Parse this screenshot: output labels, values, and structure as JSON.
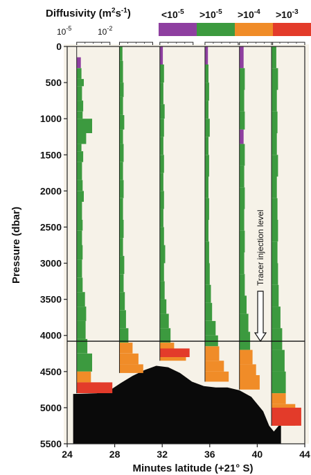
{
  "chart_data": {
    "type": "step-profiles",
    "title": "",
    "xlabel": "Minutes latitude (+21° S)",
    "ylabel": "Pressure (dbar)",
    "xlim": [
      24,
      44
    ],
    "ylim": [
      0,
      5500
    ],
    "y_inverted": true,
    "x_ticks": [
      "24",
      "28",
      "32",
      "36",
      "40",
      "44"
    ],
    "y_ticks": [
      "0",
      "500",
      "1000",
      "1500",
      "2000",
      "2500",
      "3000",
      "3500",
      "4000",
      "4500",
      "5000",
      "5500"
    ],
    "legend": {
      "title": "Diffusivity (m²s⁻¹)",
      "title_main": "Diffusivity (m",
      "title_sup1": "2",
      "title_mid": "s",
      "title_sup2": "-1",
      "title_end": ")",
      "placement": "top",
      "entries": [
        {
          "base": "<10",
          "exp": "-5",
          "color": "#8e3fa0"
        },
        {
          "base": ">10",
          "exp": "-5",
          "color": "#3c9a3f"
        },
        {
          "base": ">10",
          "exp": "-4",
          "color": "#f08c28"
        },
        {
          "base": ">10",
          "exp": "-3",
          "color": "#e33b2a"
        }
      ]
    },
    "scale_labels": [
      {
        "base": "10",
        "exp": "-5"
      },
      {
        "base": "10",
        "exp": "-2"
      }
    ],
    "annotation": {
      "text": "Tracer injection level",
      "pressure": 4080
    },
    "bottom_topography": [
      [
        24.5,
        5500
      ],
      [
        24.5,
        4810
      ],
      [
        26.5,
        4800
      ],
      [
        27.5,
        4770
      ],
      [
        28.5,
        4660
      ],
      [
        29.5,
        4560
      ],
      [
        30.5,
        4480
      ],
      [
        31.5,
        4420
      ],
      [
        32.5,
        4440
      ],
      [
        33.5,
        4520
      ],
      [
        34.5,
        4640
      ],
      [
        35.5,
        4700
      ],
      [
        36.5,
        4720
      ],
      [
        37.5,
        4720
      ],
      [
        38.5,
        4760
      ],
      [
        39.5,
        4850
      ],
      [
        40.5,
        5050
      ],
      [
        41.0,
        5250
      ],
      [
        41.4,
        5330
      ],
      [
        41.8,
        5250
      ],
      [
        42.0,
        5250
      ],
      [
        42.0,
        5500
      ]
    ],
    "profiles": [
      {
        "base_lat": 24.8,
        "segments": [
          [
            0,
            100,
            0.15,
            "#f6f2e8"
          ],
          [
            150,
            300,
            0.35,
            "#8e3fa0"
          ],
          [
            300,
            450,
            0.4,
            "#3c9a3f"
          ],
          [
            450,
            550,
            0.6,
            "#3c9a3f"
          ],
          [
            550,
            750,
            0.45,
            "#3c9a3f"
          ],
          [
            750,
            900,
            0.55,
            "#3c9a3f"
          ],
          [
            900,
            1000,
            0.5,
            "#3c9a3f"
          ],
          [
            1000,
            1200,
            1.3,
            "#3c9a3f"
          ],
          [
            1200,
            1350,
            0.8,
            "#3c9a3f"
          ],
          [
            1350,
            1450,
            0.4,
            "#3c9a3f"
          ],
          [
            1450,
            1600,
            0.55,
            "#3c9a3f"
          ],
          [
            1600,
            1850,
            0.45,
            "#3c9a3f"
          ],
          [
            1850,
            2000,
            0.5,
            "#3c9a3f"
          ],
          [
            2000,
            2150,
            0.6,
            "#3c9a3f"
          ],
          [
            2150,
            2400,
            0.45,
            "#3c9a3f"
          ],
          [
            2400,
            2550,
            0.5,
            "#3c9a3f"
          ],
          [
            2550,
            2750,
            0.45,
            "#3c9a3f"
          ],
          [
            2750,
            2950,
            0.5,
            "#3c9a3f"
          ],
          [
            2950,
            3200,
            0.45,
            "#3c9a3f"
          ],
          [
            3200,
            3400,
            0.5,
            "#3c9a3f"
          ],
          [
            3400,
            3600,
            0.7,
            "#3c9a3f"
          ],
          [
            3600,
            3800,
            0.8,
            "#3c9a3f"
          ],
          [
            3800,
            4050,
            0.75,
            "#3c9a3f"
          ],
          [
            4050,
            4250,
            0.9,
            "#3c9a3f"
          ],
          [
            4250,
            4500,
            1.3,
            "#3c9a3f"
          ],
          [
            4500,
            4650,
            1.2,
            "#f08c28"
          ],
          [
            4650,
            4800,
            2.0,
            "#f08c28"
          ],
          [
            4650,
            4800,
            3.0,
            "#e33b2a"
          ]
        ]
      },
      {
        "base_lat": 28.4,
        "segments": [
          [
            0,
            200,
            0.25,
            "#3c9a3f"
          ],
          [
            200,
            500,
            0.3,
            "#3c9a3f"
          ],
          [
            500,
            700,
            0.35,
            "#3c9a3f"
          ],
          [
            700,
            950,
            0.3,
            "#3c9a3f"
          ],
          [
            950,
            1150,
            0.4,
            "#3c9a3f"
          ],
          [
            1150,
            1350,
            0.3,
            "#3c9a3f"
          ],
          [
            1350,
            1600,
            0.35,
            "#3c9a3f"
          ],
          [
            1600,
            1850,
            0.3,
            "#3c9a3f"
          ],
          [
            1850,
            2100,
            0.35,
            "#3c9a3f"
          ],
          [
            2100,
            2400,
            0.3,
            "#3c9a3f"
          ],
          [
            2400,
            2650,
            0.35,
            "#3c9a3f"
          ],
          [
            2650,
            2900,
            0.3,
            "#3c9a3f"
          ],
          [
            2900,
            3150,
            0.4,
            "#3c9a3f"
          ],
          [
            3150,
            3400,
            0.35,
            "#3c9a3f"
          ],
          [
            3400,
            3650,
            0.45,
            "#3c9a3f"
          ],
          [
            3650,
            3900,
            0.55,
            "#3c9a3f"
          ],
          [
            3900,
            4100,
            0.75,
            "#3c9a3f"
          ],
          [
            4100,
            4250,
            1.1,
            "#f08c28"
          ],
          [
            4250,
            4400,
            1.6,
            "#f08c28"
          ],
          [
            4400,
            4520,
            2.0,
            "#f08c28"
          ]
        ]
      },
      {
        "base_lat": 31.8,
        "segments": [
          [
            0,
            250,
            0.25,
            "#8e3fa0"
          ],
          [
            250,
            500,
            0.35,
            "#3c9a3f"
          ],
          [
            500,
            800,
            0.3,
            "#3c9a3f"
          ],
          [
            800,
            1000,
            0.4,
            "#3c9a3f"
          ],
          [
            1000,
            1250,
            0.35,
            "#3c9a3f"
          ],
          [
            1250,
            1500,
            0.3,
            "#3c9a3f"
          ],
          [
            1500,
            1750,
            0.35,
            "#3c9a3f"
          ],
          [
            1750,
            2000,
            0.3,
            "#3c9a3f"
          ],
          [
            2000,
            2250,
            0.35,
            "#3c9a3f"
          ],
          [
            2250,
            2500,
            0.3,
            "#3c9a3f"
          ],
          [
            2500,
            2750,
            0.35,
            "#3c9a3f"
          ],
          [
            2750,
            3000,
            0.45,
            "#3c9a3f"
          ],
          [
            3000,
            3250,
            0.35,
            "#3c9a3f"
          ],
          [
            3250,
            3500,
            0.4,
            "#3c9a3f"
          ],
          [
            3500,
            3700,
            0.55,
            "#3c9a3f"
          ],
          [
            3700,
            3900,
            0.75,
            "#3c9a3f"
          ],
          [
            3900,
            4100,
            0.9,
            "#3c9a3f"
          ],
          [
            4100,
            4250,
            1.2,
            "#f08c28"
          ],
          [
            4250,
            4350,
            2.2,
            "#f08c28"
          ],
          [
            4180,
            4300,
            2.5,
            "#e33b2a"
          ]
        ]
      },
      {
        "base_lat": 35.6,
        "segments": [
          [
            0,
            250,
            0.25,
            "#8e3fa0"
          ],
          [
            250,
            500,
            0.3,
            "#3c9a3f"
          ],
          [
            500,
            750,
            0.35,
            "#3c9a3f"
          ],
          [
            750,
            1000,
            0.3,
            "#3c9a3f"
          ],
          [
            1000,
            1250,
            0.4,
            "#3c9a3f"
          ],
          [
            1250,
            1500,
            0.3,
            "#3c9a3f"
          ],
          [
            1500,
            1800,
            0.35,
            "#3c9a3f"
          ],
          [
            1800,
            2100,
            0.3,
            "#3c9a3f"
          ],
          [
            2100,
            2400,
            0.35,
            "#3c9a3f"
          ],
          [
            2400,
            2700,
            0.3,
            "#3c9a3f"
          ],
          [
            2700,
            3000,
            0.35,
            "#3c9a3f"
          ],
          [
            3000,
            3300,
            0.4,
            "#3c9a3f"
          ],
          [
            3300,
            3550,
            0.5,
            "#3c9a3f"
          ],
          [
            3550,
            3800,
            0.6,
            "#3c9a3f"
          ],
          [
            3800,
            4000,
            0.9,
            "#3c9a3f"
          ],
          [
            4000,
            4150,
            1.1,
            "#3c9a3f"
          ],
          [
            4150,
            4350,
            1.2,
            "#f08c28"
          ],
          [
            4350,
            4500,
            1.6,
            "#f08c28"
          ],
          [
            4500,
            4640,
            2.0,
            "#f08c28"
          ]
        ]
      },
      {
        "base_lat": 38.5,
        "segments": [
          [
            0,
            300,
            0.35,
            "#8e3fa0"
          ],
          [
            300,
            600,
            0.45,
            "#3c9a3f"
          ],
          [
            600,
            900,
            0.4,
            "#3c9a3f"
          ],
          [
            900,
            1150,
            0.45,
            "#3c9a3f"
          ],
          [
            1150,
            1350,
            0.35,
            "#8e3fa0"
          ],
          [
            1350,
            1650,
            0.45,
            "#3c9a3f"
          ],
          [
            1650,
            1950,
            0.4,
            "#3c9a3f"
          ],
          [
            1950,
            2250,
            0.45,
            "#3c9a3f"
          ],
          [
            2250,
            2550,
            0.4,
            "#3c9a3f"
          ],
          [
            2550,
            2850,
            0.45,
            "#3c9a3f"
          ],
          [
            2850,
            3150,
            0.4,
            "#3c9a3f"
          ],
          [
            3150,
            3450,
            0.45,
            "#3c9a3f"
          ],
          [
            3450,
            3700,
            0.6,
            "#3c9a3f"
          ],
          [
            3700,
            3950,
            0.75,
            "#3c9a3f"
          ],
          [
            3950,
            4200,
            0.9,
            "#3c9a3f"
          ],
          [
            4200,
            4400,
            1.1,
            "#f08c28"
          ],
          [
            4400,
            4550,
            1.4,
            "#f08c28"
          ],
          [
            4550,
            4750,
            1.7,
            "#f08c28"
          ]
        ]
      },
      {
        "base_lat": 41.2,
        "segments": [
          [
            0,
            300,
            0.4,
            "#3c9a3f"
          ],
          [
            300,
            600,
            0.55,
            "#3c9a3f"
          ],
          [
            600,
            900,
            0.45,
            "#3c9a3f"
          ],
          [
            900,
            1200,
            0.5,
            "#3c9a3f"
          ],
          [
            1200,
            1500,
            0.45,
            "#3c9a3f"
          ],
          [
            1500,
            1800,
            0.55,
            "#3c9a3f"
          ],
          [
            1800,
            2100,
            0.45,
            "#3c9a3f"
          ],
          [
            2100,
            2400,
            0.5,
            "#3c9a3f"
          ],
          [
            2400,
            2700,
            0.55,
            "#3c9a3f"
          ],
          [
            2700,
            3000,
            0.5,
            "#3c9a3f"
          ],
          [
            3000,
            3300,
            0.55,
            "#3c9a3f"
          ],
          [
            3300,
            3600,
            0.6,
            "#3c9a3f"
          ],
          [
            3600,
            3900,
            0.75,
            "#3c9a3f"
          ],
          [
            3900,
            4200,
            0.9,
            "#3c9a3f"
          ],
          [
            4200,
            4500,
            1.1,
            "#3c9a3f"
          ],
          [
            4500,
            4800,
            1.2,
            "#3c9a3f"
          ],
          [
            4800,
            4950,
            1.2,
            "#f08c28"
          ],
          [
            4950,
            5250,
            2.0,
            "#f08c28"
          ],
          [
            5000,
            5250,
            2.5,
            "#e33b2a"
          ]
        ]
      }
    ]
  }
}
